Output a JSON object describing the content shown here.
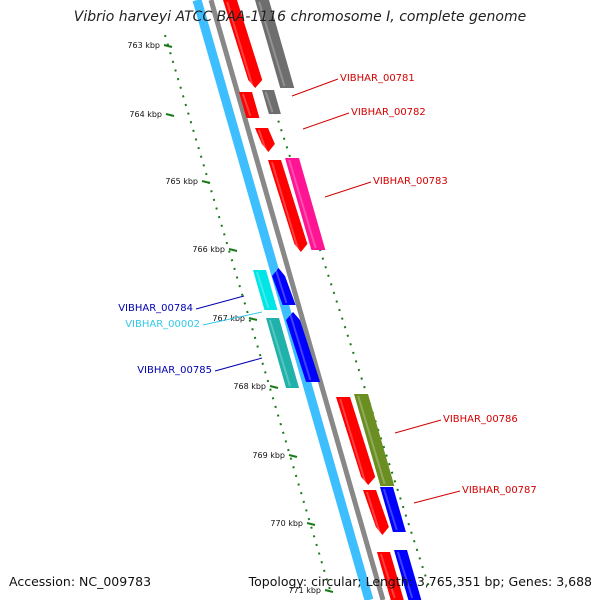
{
  "title": "Vibrio harveyi ATCC BAA-1116 chromosome I, complete genome",
  "accession_text": "Accession: NC_009783",
  "summary_text": "Topology: circular; Length: 3,765,351 bp; Genes: 3,688",
  "colors": {
    "backbone_outer": "#3dbfff",
    "backbone_inner": "#888888",
    "forward_gene": "#ff0000",
    "reverse_gene": "#0000ff",
    "rna_gene": "#00e5e5",
    "grey_feature": "#6e6e6e",
    "pink_feature": "#ff1493",
    "olive_feature": "#6b8e23",
    "teal_feature": "#20b2aa",
    "tick_color": "#1a7a1a"
  },
  "ruler": {
    "ticks": [
      "763 kbp",
      "764 kbp",
      "765 kbp",
      "766 kbp",
      "767 kbp",
      "768 kbp",
      "769 kbp",
      "770 kbp",
      "771 kbp"
    ]
  },
  "gene_labels": [
    {
      "text": "VIBHAR_00781",
      "color": "#d40000"
    },
    {
      "text": "VIBHAR_00782",
      "color": "#d40000"
    },
    {
      "text": "VIBHAR_00783",
      "color": "#d40000"
    },
    {
      "text": "VIBHAR_00784",
      "color": "#0000b0"
    },
    {
      "text": "VIBHAR_00002",
      "color": "#33c8e8"
    },
    {
      "text": "VIBHAR_00785",
      "color": "#0000b0"
    },
    {
      "text": "VIBHAR_00786",
      "color": "#d40000"
    },
    {
      "text": "VIBHAR_00787",
      "color": "#d40000"
    }
  ]
}
